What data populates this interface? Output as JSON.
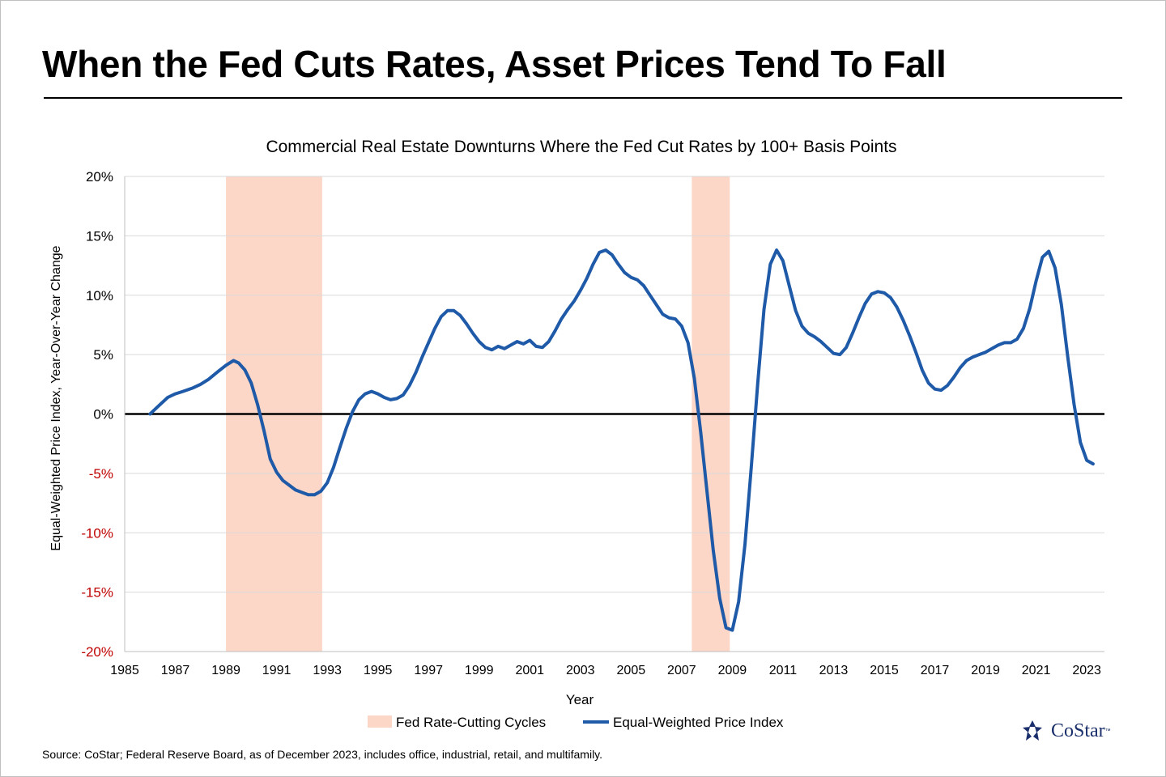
{
  "title": "When the Fed Cuts Rates, Asset Prices Tend To Fall",
  "source": "Source: CoStar; Federal Reserve Board, as of December 2023, includes office, industrial, retail, and multifamily.",
  "logo": {
    "text": "CoStar",
    "tm": "™"
  },
  "colors": {
    "line": "#1f5aa8",
    "band": "#fcd7c7",
    "negative_tick": "#c00000",
    "grid": "#d9d9d9"
  },
  "chart_data": {
    "type": "line",
    "title": "Commercial Real Estate Downturns Where the Fed Cut Rates by 100+ Basis Points",
    "xlabel": "Year",
    "ylabel": "Equal-Weighted Price Index, Year-Over-Year Change",
    "xlim": [
      1985,
      2023.7
    ],
    "ylim": [
      -20,
      20
    ],
    "x_ticks": [
      1985,
      1987,
      1989,
      1991,
      1993,
      1995,
      1997,
      1999,
      2001,
      2003,
      2005,
      2007,
      2009,
      2011,
      2013,
      2015,
      2017,
      2019,
      2021,
      2023
    ],
    "y_ticks": [
      {
        "value": 20,
        "label": "20%"
      },
      {
        "value": 15,
        "label": "15%"
      },
      {
        "value": 10,
        "label": "10%"
      },
      {
        "value": 5,
        "label": "5%"
      },
      {
        "value": 0,
        "label": "0%"
      },
      {
        "value": -5,
        "label": "-5%"
      },
      {
        "value": -10,
        "label": "-10%"
      },
      {
        "value": -15,
        "label": "-15%"
      },
      {
        "value": -20,
        "label": "-20%"
      }
    ],
    "legend": [
      {
        "name": "Fed Rate-Cutting Cycles",
        "kind": "band"
      },
      {
        "name": "Equal-Weighted Price Index",
        "kind": "line"
      }
    ],
    "legend_position": "bottom",
    "shaded_periods": [
      {
        "start": 1989.0,
        "end": 1992.8
      },
      {
        "start": 2007.4,
        "end": 2008.9
      }
    ],
    "series": [
      {
        "name": "Equal-Weighted Price Index",
        "points": [
          [
            1986.0,
            0.0
          ],
          [
            1986.3,
            0.6
          ],
          [
            1986.7,
            1.4
          ],
          [
            1987.0,
            1.7
          ],
          [
            1987.3,
            1.9
          ],
          [
            1987.7,
            2.2
          ],
          [
            1988.0,
            2.5
          ],
          [
            1988.3,
            2.9
          ],
          [
            1988.7,
            3.6
          ],
          [
            1989.0,
            4.1
          ],
          [
            1989.3,
            4.5
          ],
          [
            1989.5,
            4.3
          ],
          [
            1989.75,
            3.7
          ],
          [
            1990.0,
            2.6
          ],
          [
            1990.25,
            0.8
          ],
          [
            1990.5,
            -1.4
          ],
          [
            1990.75,
            -3.8
          ],
          [
            1991.0,
            -4.9
          ],
          [
            1991.25,
            -5.6
          ],
          [
            1991.5,
            -6.0
          ],
          [
            1991.75,
            -6.4
          ],
          [
            1992.0,
            -6.6
          ],
          [
            1992.25,
            -6.8
          ],
          [
            1992.5,
            -6.8
          ],
          [
            1992.75,
            -6.5
          ],
          [
            1993.0,
            -5.8
          ],
          [
            1993.25,
            -4.5
          ],
          [
            1993.5,
            -2.8
          ],
          [
            1993.75,
            -1.2
          ],
          [
            1994.0,
            0.2
          ],
          [
            1994.25,
            1.2
          ],
          [
            1994.5,
            1.7
          ],
          [
            1994.75,
            1.9
          ],
          [
            1995.0,
            1.7
          ],
          [
            1995.25,
            1.4
          ],
          [
            1995.5,
            1.2
          ],
          [
            1995.75,
            1.3
          ],
          [
            1996.0,
            1.6
          ],
          [
            1996.25,
            2.4
          ],
          [
            1996.5,
            3.5
          ],
          [
            1996.75,
            4.8
          ],
          [
            1997.0,
            6.0
          ],
          [
            1997.25,
            7.2
          ],
          [
            1997.5,
            8.2
          ],
          [
            1997.75,
            8.7
          ],
          [
            1998.0,
            8.7
          ],
          [
            1998.25,
            8.3
          ],
          [
            1998.5,
            7.6
          ],
          [
            1998.75,
            6.8
          ],
          [
            1999.0,
            6.1
          ],
          [
            1999.25,
            5.6
          ],
          [
            1999.5,
            5.4
          ],
          [
            1999.75,
            5.7
          ],
          [
            2000.0,
            5.5
          ],
          [
            2000.25,
            5.8
          ],
          [
            2000.5,
            6.1
          ],
          [
            2000.75,
            5.9
          ],
          [
            2001.0,
            6.2
          ],
          [
            2001.25,
            5.7
          ],
          [
            2001.5,
            5.6
          ],
          [
            2001.75,
            6.1
          ],
          [
            2002.0,
            7.0
          ],
          [
            2002.25,
            8.0
          ],
          [
            2002.5,
            8.8
          ],
          [
            2002.75,
            9.5
          ],
          [
            2003.0,
            10.4
          ],
          [
            2003.25,
            11.4
          ],
          [
            2003.5,
            12.6
          ],
          [
            2003.75,
            13.6
          ],
          [
            2004.0,
            13.8
          ],
          [
            2004.25,
            13.4
          ],
          [
            2004.5,
            12.6
          ],
          [
            2004.75,
            11.9
          ],
          [
            2005.0,
            11.5
          ],
          [
            2005.25,
            11.3
          ],
          [
            2005.5,
            10.8
          ],
          [
            2005.75,
            10.0
          ],
          [
            2006.0,
            9.2
          ],
          [
            2006.25,
            8.4
          ],
          [
            2006.5,
            8.1
          ],
          [
            2006.75,
            8.0
          ],
          [
            2007.0,
            7.4
          ],
          [
            2007.25,
            6.0
          ],
          [
            2007.5,
            3.0
          ],
          [
            2007.75,
            -1.5
          ],
          [
            2008.0,
            -6.5
          ],
          [
            2008.25,
            -11.5
          ],
          [
            2008.5,
            -15.5
          ],
          [
            2008.75,
            -18.0
          ],
          [
            2009.0,
            -18.2
          ],
          [
            2009.25,
            -15.8
          ],
          [
            2009.5,
            -11.0
          ],
          [
            2009.75,
            -4.5
          ],
          [
            2010.0,
            2.5
          ],
          [
            2010.25,
            8.8
          ],
          [
            2010.5,
            12.6
          ],
          [
            2010.75,
            13.8
          ],
          [
            2011.0,
            12.9
          ],
          [
            2011.25,
            10.8
          ],
          [
            2011.5,
            8.7
          ],
          [
            2011.75,
            7.4
          ],
          [
            2012.0,
            6.8
          ],
          [
            2012.25,
            6.5
          ],
          [
            2012.5,
            6.1
          ],
          [
            2012.75,
            5.6
          ],
          [
            2013.0,
            5.1
          ],
          [
            2013.25,
            5.0
          ],
          [
            2013.5,
            5.6
          ],
          [
            2013.75,
            6.8
          ],
          [
            2014.0,
            8.1
          ],
          [
            2014.25,
            9.3
          ],
          [
            2014.5,
            10.1
          ],
          [
            2014.75,
            10.3
          ],
          [
            2015.0,
            10.2
          ],
          [
            2015.25,
            9.8
          ],
          [
            2015.5,
            9.0
          ],
          [
            2015.75,
            7.9
          ],
          [
            2016.0,
            6.6
          ],
          [
            2016.25,
            5.2
          ],
          [
            2016.5,
            3.7
          ],
          [
            2016.75,
            2.6
          ],
          [
            2017.0,
            2.1
          ],
          [
            2017.25,
            2.0
          ],
          [
            2017.5,
            2.4
          ],
          [
            2017.75,
            3.1
          ],
          [
            2018.0,
            3.9
          ],
          [
            2018.25,
            4.5
          ],
          [
            2018.5,
            4.8
          ],
          [
            2018.75,
            5.0
          ],
          [
            2019.0,
            5.2
          ],
          [
            2019.25,
            5.5
          ],
          [
            2019.5,
            5.8
          ],
          [
            2019.75,
            6.0
          ],
          [
            2020.0,
            6.0
          ],
          [
            2020.25,
            6.3
          ],
          [
            2020.5,
            7.2
          ],
          [
            2020.75,
            8.9
          ],
          [
            2021.0,
            11.2
          ],
          [
            2021.25,
            13.2
          ],
          [
            2021.5,
            13.7
          ],
          [
            2021.75,
            12.3
          ],
          [
            2022.0,
            9.2
          ],
          [
            2022.25,
            4.8
          ],
          [
            2022.5,
            0.8
          ],
          [
            2022.75,
            -2.4
          ],
          [
            2023.0,
            -3.9
          ],
          [
            2023.25,
            -4.2
          ]
        ]
      }
    ]
  }
}
